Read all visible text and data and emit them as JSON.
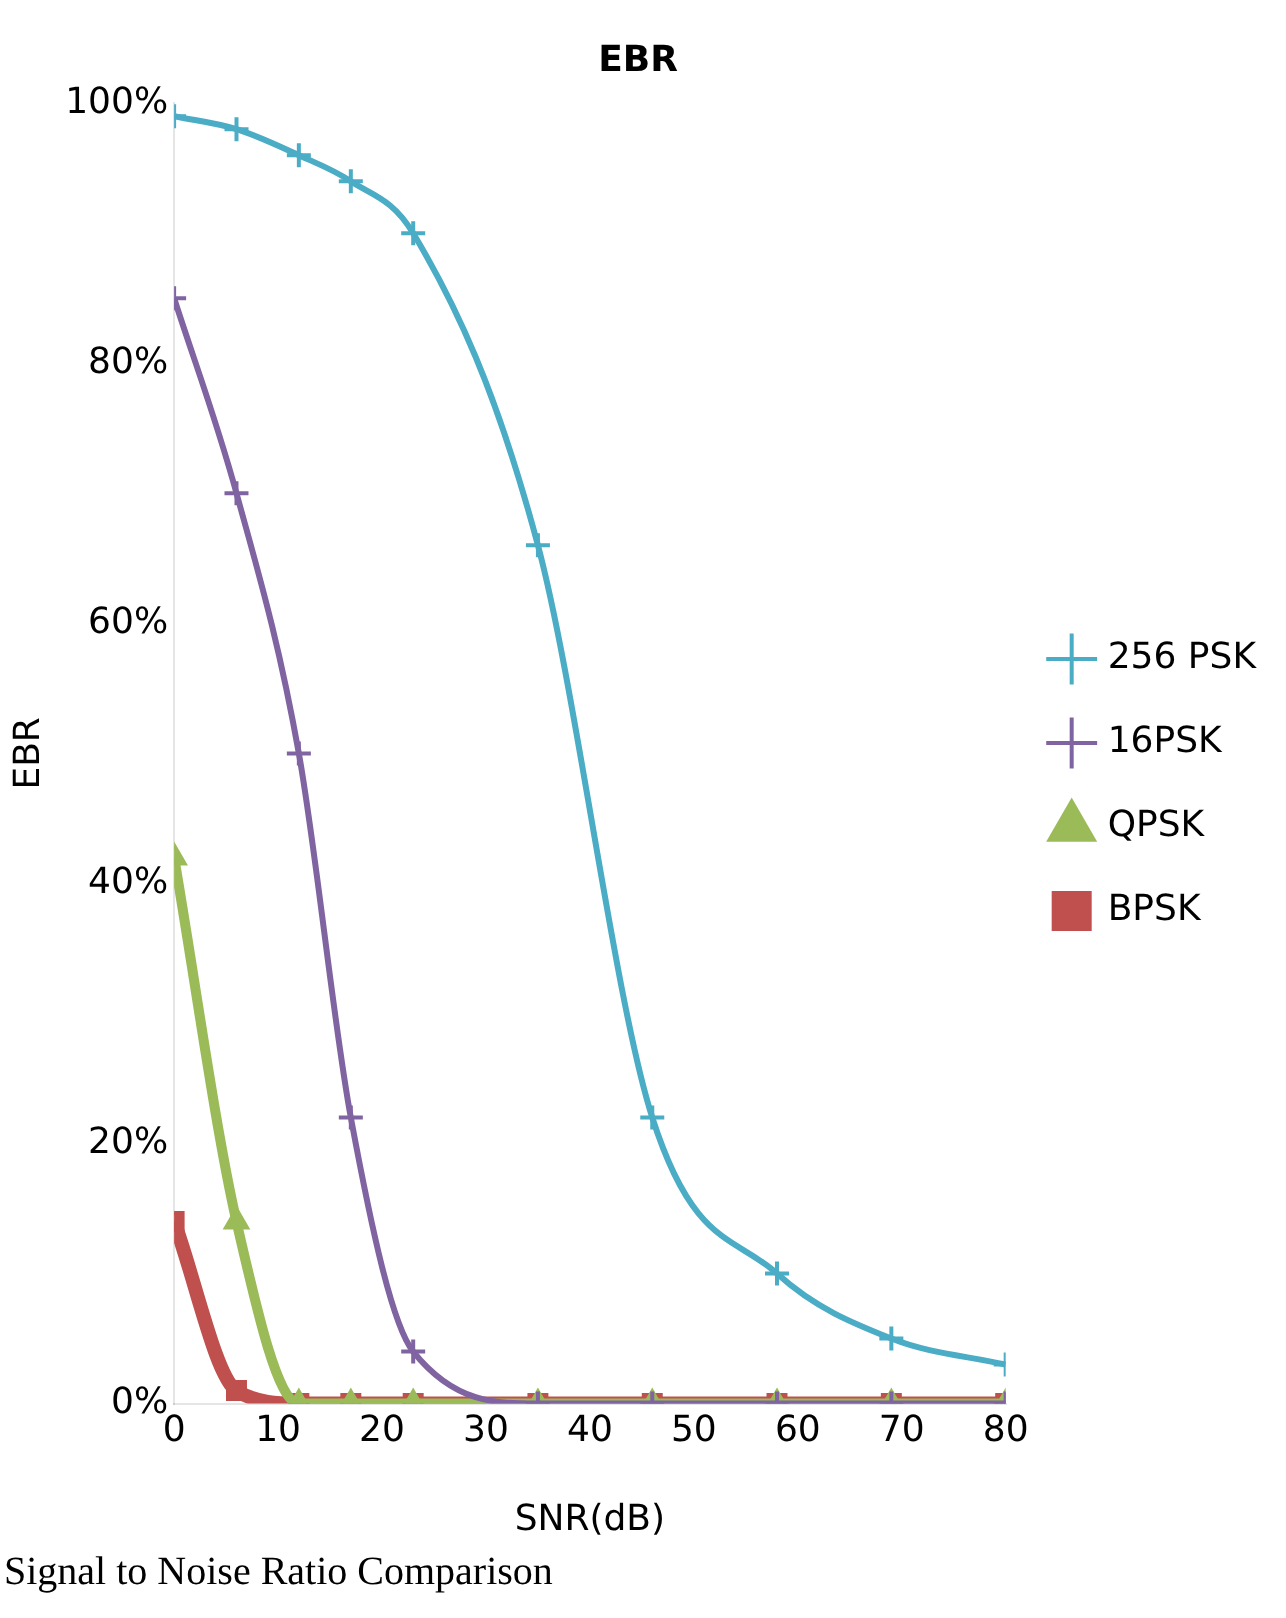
{
  "chart_data": {
    "type": "line",
    "title": "EBR",
    "ylabel": "EBR",
    "xlabel": "SNR(dB)",
    "annotations": [
      "Signal to Noise Ratio Comparison"
    ],
    "x": [
      0,
      6,
      12,
      17,
      23,
      35,
      46,
      58,
      69,
      80
    ],
    "xlim": [
      0,
      80
    ],
    "xticks": [
      0,
      10,
      20,
      30,
      40,
      50,
      60,
      70,
      80
    ],
    "ylim": [
      0,
      100
    ],
    "yticks": [
      {
        "value": 0,
        "label": "0%"
      },
      {
        "value": 20,
        "label": "20%"
      },
      {
        "value": 40,
        "label": "40%"
      },
      {
        "value": 60,
        "label": "60%"
      },
      {
        "value": 80,
        "label": "80%"
      },
      {
        "value": 100,
        "label": "100%"
      }
    ],
    "grid": false,
    "legend": "right",
    "series": [
      {
        "name": "BPSK",
        "color": "#c0504d",
        "marker": "square",
        "values": [
          14,
          1,
          0,
          0,
          0,
          0,
          0,
          0,
          0,
          0
        ]
      },
      {
        "name": "QPSK",
        "color": "#9bbb59",
        "marker": "triangle",
        "values": [
          42,
          14,
          0,
          0,
          0,
          0,
          0,
          0,
          0,
          0
        ]
      },
      {
        "name": "16PSK",
        "color": "#8064a2",
        "marker": "cross",
        "values": [
          85,
          70,
          50,
          22,
          4,
          0,
          0,
          0,
          0,
          0
        ]
      },
      {
        "name": "256 PSK",
        "color": "#4bacc6",
        "marker": "cross",
        "values": [
          99,
          98,
          96,
          94,
          90,
          66,
          22,
          10,
          5,
          3
        ]
      }
    ]
  }
}
